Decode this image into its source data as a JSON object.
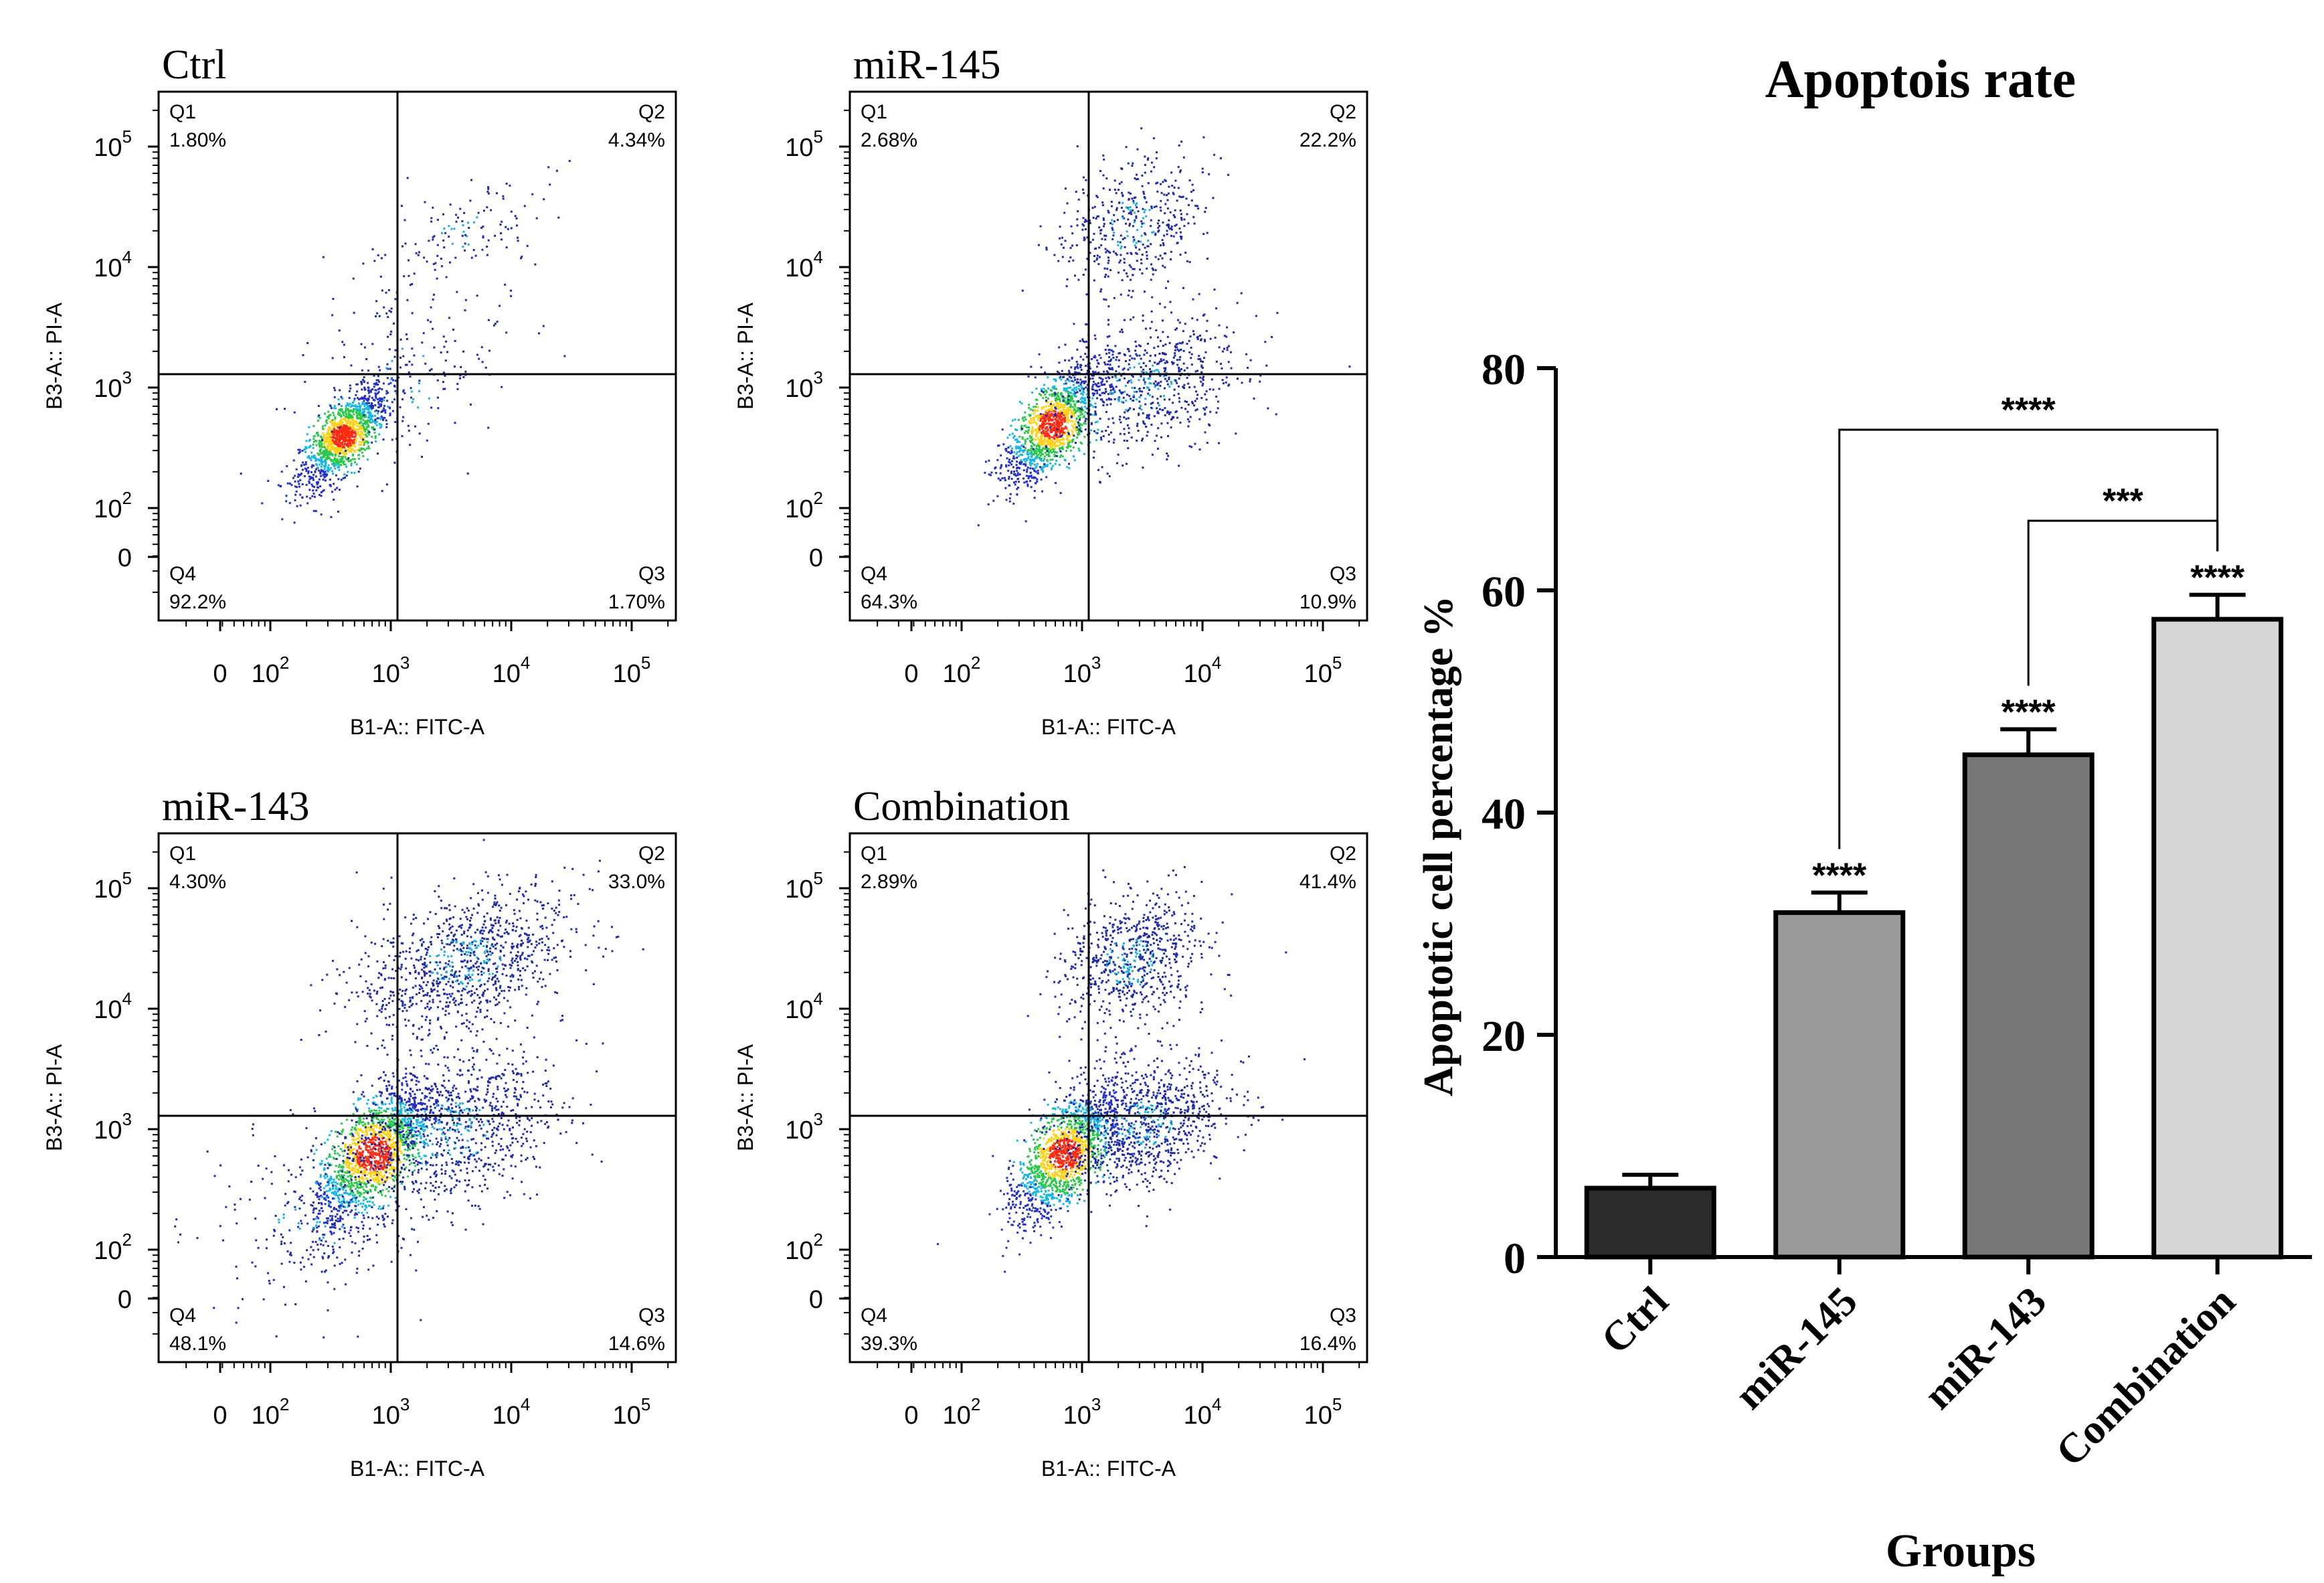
{
  "figure": {
    "flow_panels": [
      {
        "title": "Ctrl",
        "quadrants": [
          {
            "label": "Q1",
            "pct": "1.80%"
          },
          {
            "label": "Q2",
            "pct": "4.34%"
          },
          {
            "label": "Q3",
            "pct": "1.70%"
          },
          {
            "label": "Q4",
            "pct": "92.2%"
          }
        ],
        "x_axis_label": "B1-A:: FITC-A",
        "y_axis_label": "B3-A:: PI-A",
        "x_ticks": [
          "0",
          "10",
          "10",
          "10",
          "10"
        ],
        "x_tick_exps": [
          "",
          "2",
          "3",
          "4",
          "5"
        ],
        "y_ticks": [
          "0",
          "10",
          "10",
          "10",
          "10"
        ],
        "y_tick_exps": [
          "",
          "2",
          "3",
          "4",
          "5"
        ]
      },
      {
        "title": "miR-145",
        "quadrants": [
          {
            "label": "Q1",
            "pct": "2.68%"
          },
          {
            "label": "Q2",
            "pct": "22.2%"
          },
          {
            "label": "Q3",
            "pct": "10.9%"
          },
          {
            "label": "Q4",
            "pct": "64.3%"
          }
        ],
        "x_axis_label": "B1-A:: FITC-A",
        "y_axis_label": "B3-A:: PI-A",
        "x_ticks": [
          "0",
          "10",
          "10",
          "10",
          "10"
        ],
        "x_tick_exps": [
          "",
          "2",
          "3",
          "4",
          "5"
        ],
        "y_ticks": [
          "0",
          "10",
          "10",
          "10",
          "10"
        ],
        "y_tick_exps": [
          "",
          "2",
          "3",
          "4",
          "5"
        ]
      },
      {
        "title": "miR-143",
        "quadrants": [
          {
            "label": "Q1",
            "pct": "4.30%"
          },
          {
            "label": "Q2",
            "pct": "33.0%"
          },
          {
            "label": "Q3",
            "pct": "14.6%"
          },
          {
            "label": "Q4",
            "pct": "48.1%"
          }
        ],
        "x_axis_label": "B1-A:: FITC-A",
        "y_axis_label": "B3-A:: PI-A",
        "x_ticks": [
          "0",
          "10",
          "10",
          "10",
          "10"
        ],
        "x_tick_exps": [
          "",
          "2",
          "3",
          "4",
          "5"
        ],
        "y_ticks": [
          "0",
          "10",
          "10",
          "10",
          "10"
        ],
        "y_tick_exps": [
          "",
          "2",
          "3",
          "4",
          "5"
        ]
      },
      {
        "title": "Combination",
        "quadrants": [
          {
            "label": "Q1",
            "pct": "2.89%"
          },
          {
            "label": "Q2",
            "pct": "41.4%"
          },
          {
            "label": "Q3",
            "pct": "16.4%"
          },
          {
            "label": "Q4",
            "pct": "39.3%"
          }
        ],
        "x_axis_label": "B1-A:: FITC-A",
        "y_axis_label": "B3-A:: PI-A",
        "x_ticks": [
          "0",
          "10",
          "10",
          "10",
          "10"
        ],
        "x_tick_exps": [
          "",
          "2",
          "3",
          "4",
          "5"
        ],
        "y_ticks": [
          "0",
          "10",
          "10",
          "10",
          "10"
        ],
        "y_tick_exps": [
          "",
          "2",
          "3",
          "4",
          "5"
        ]
      }
    ]
  },
  "chart_data": {
    "type": "bar",
    "title": "Apoptois rate",
    "xlabel": "Groups",
    "ylabel": "Apoptotic cell percentage %",
    "ylim": [
      0,
      80
    ],
    "yticks": [
      0,
      20,
      40,
      60,
      80
    ],
    "categories": [
      "Ctrl",
      "miR-145",
      "miR-143",
      "Combination"
    ],
    "values": [
      6.2,
      31,
      45.2,
      57.4
    ],
    "errors": [
      1.2,
      1.8,
      2.3,
      2.2
    ],
    "colors": [
      "#2b2b2b",
      "#9b9b9b",
      "#777777",
      "#d6d6d6"
    ],
    "bar_labels": [
      "",
      "****",
      "****",
      "****"
    ],
    "brackets": [
      {
        "from": 1,
        "to": 3,
        "label": "****"
      },
      {
        "from": 2,
        "to": 3,
        "label": "***"
      }
    ]
  }
}
